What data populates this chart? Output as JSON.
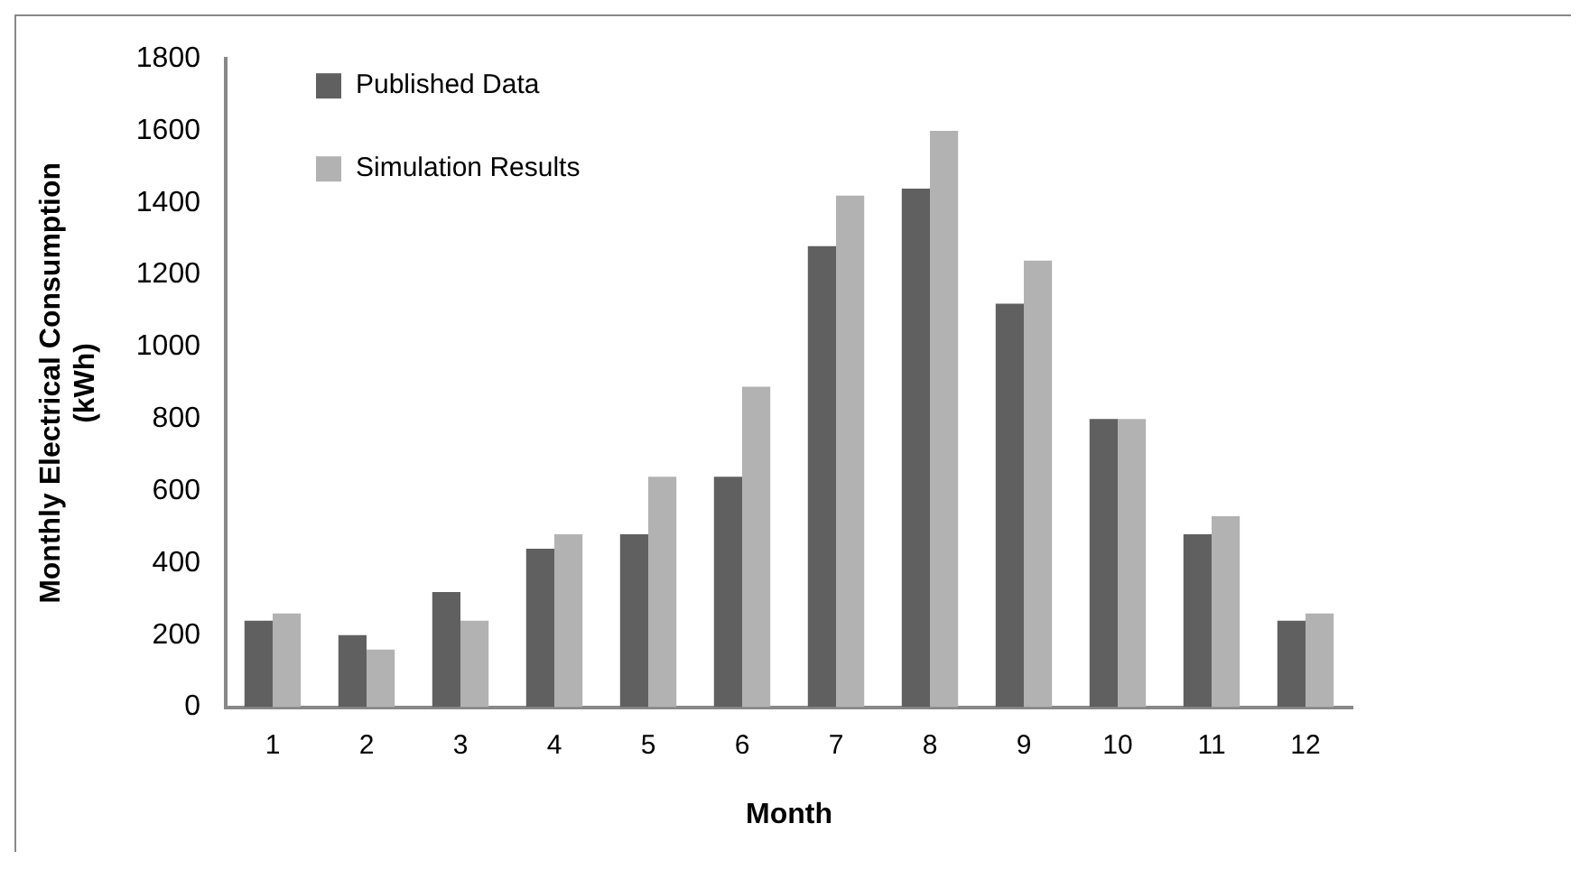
{
  "chart_data": {
    "type": "bar",
    "xlabel": "Month",
    "ylabel": "Monthly Electrical Consumption (kWh)",
    "categories": [
      "1",
      "2",
      "3",
      "4",
      "5",
      "6",
      "7",
      "8",
      "9",
      "10",
      "11",
      "12"
    ],
    "series": [
      {
        "name": "Published Data",
        "color": "#606060",
        "values": [
          240,
          200,
          320,
          440,
          480,
          640,
          1280,
          1440,
          1120,
          800,
          480,
          240
        ]
      },
      {
        "name": "Simulation Results",
        "color": "#b2b2b2",
        "values": [
          260,
          160,
          240,
          480,
          640,
          890,
          1420,
          1600,
          1240,
          800,
          530,
          260
        ]
      }
    ],
    "ylim": [
      0,
      1800
    ],
    "yticks": [
      0,
      200,
      400,
      600,
      800,
      1000,
      1200,
      1400,
      1600,
      1800
    ],
    "grid": false,
    "legend": "top left"
  }
}
